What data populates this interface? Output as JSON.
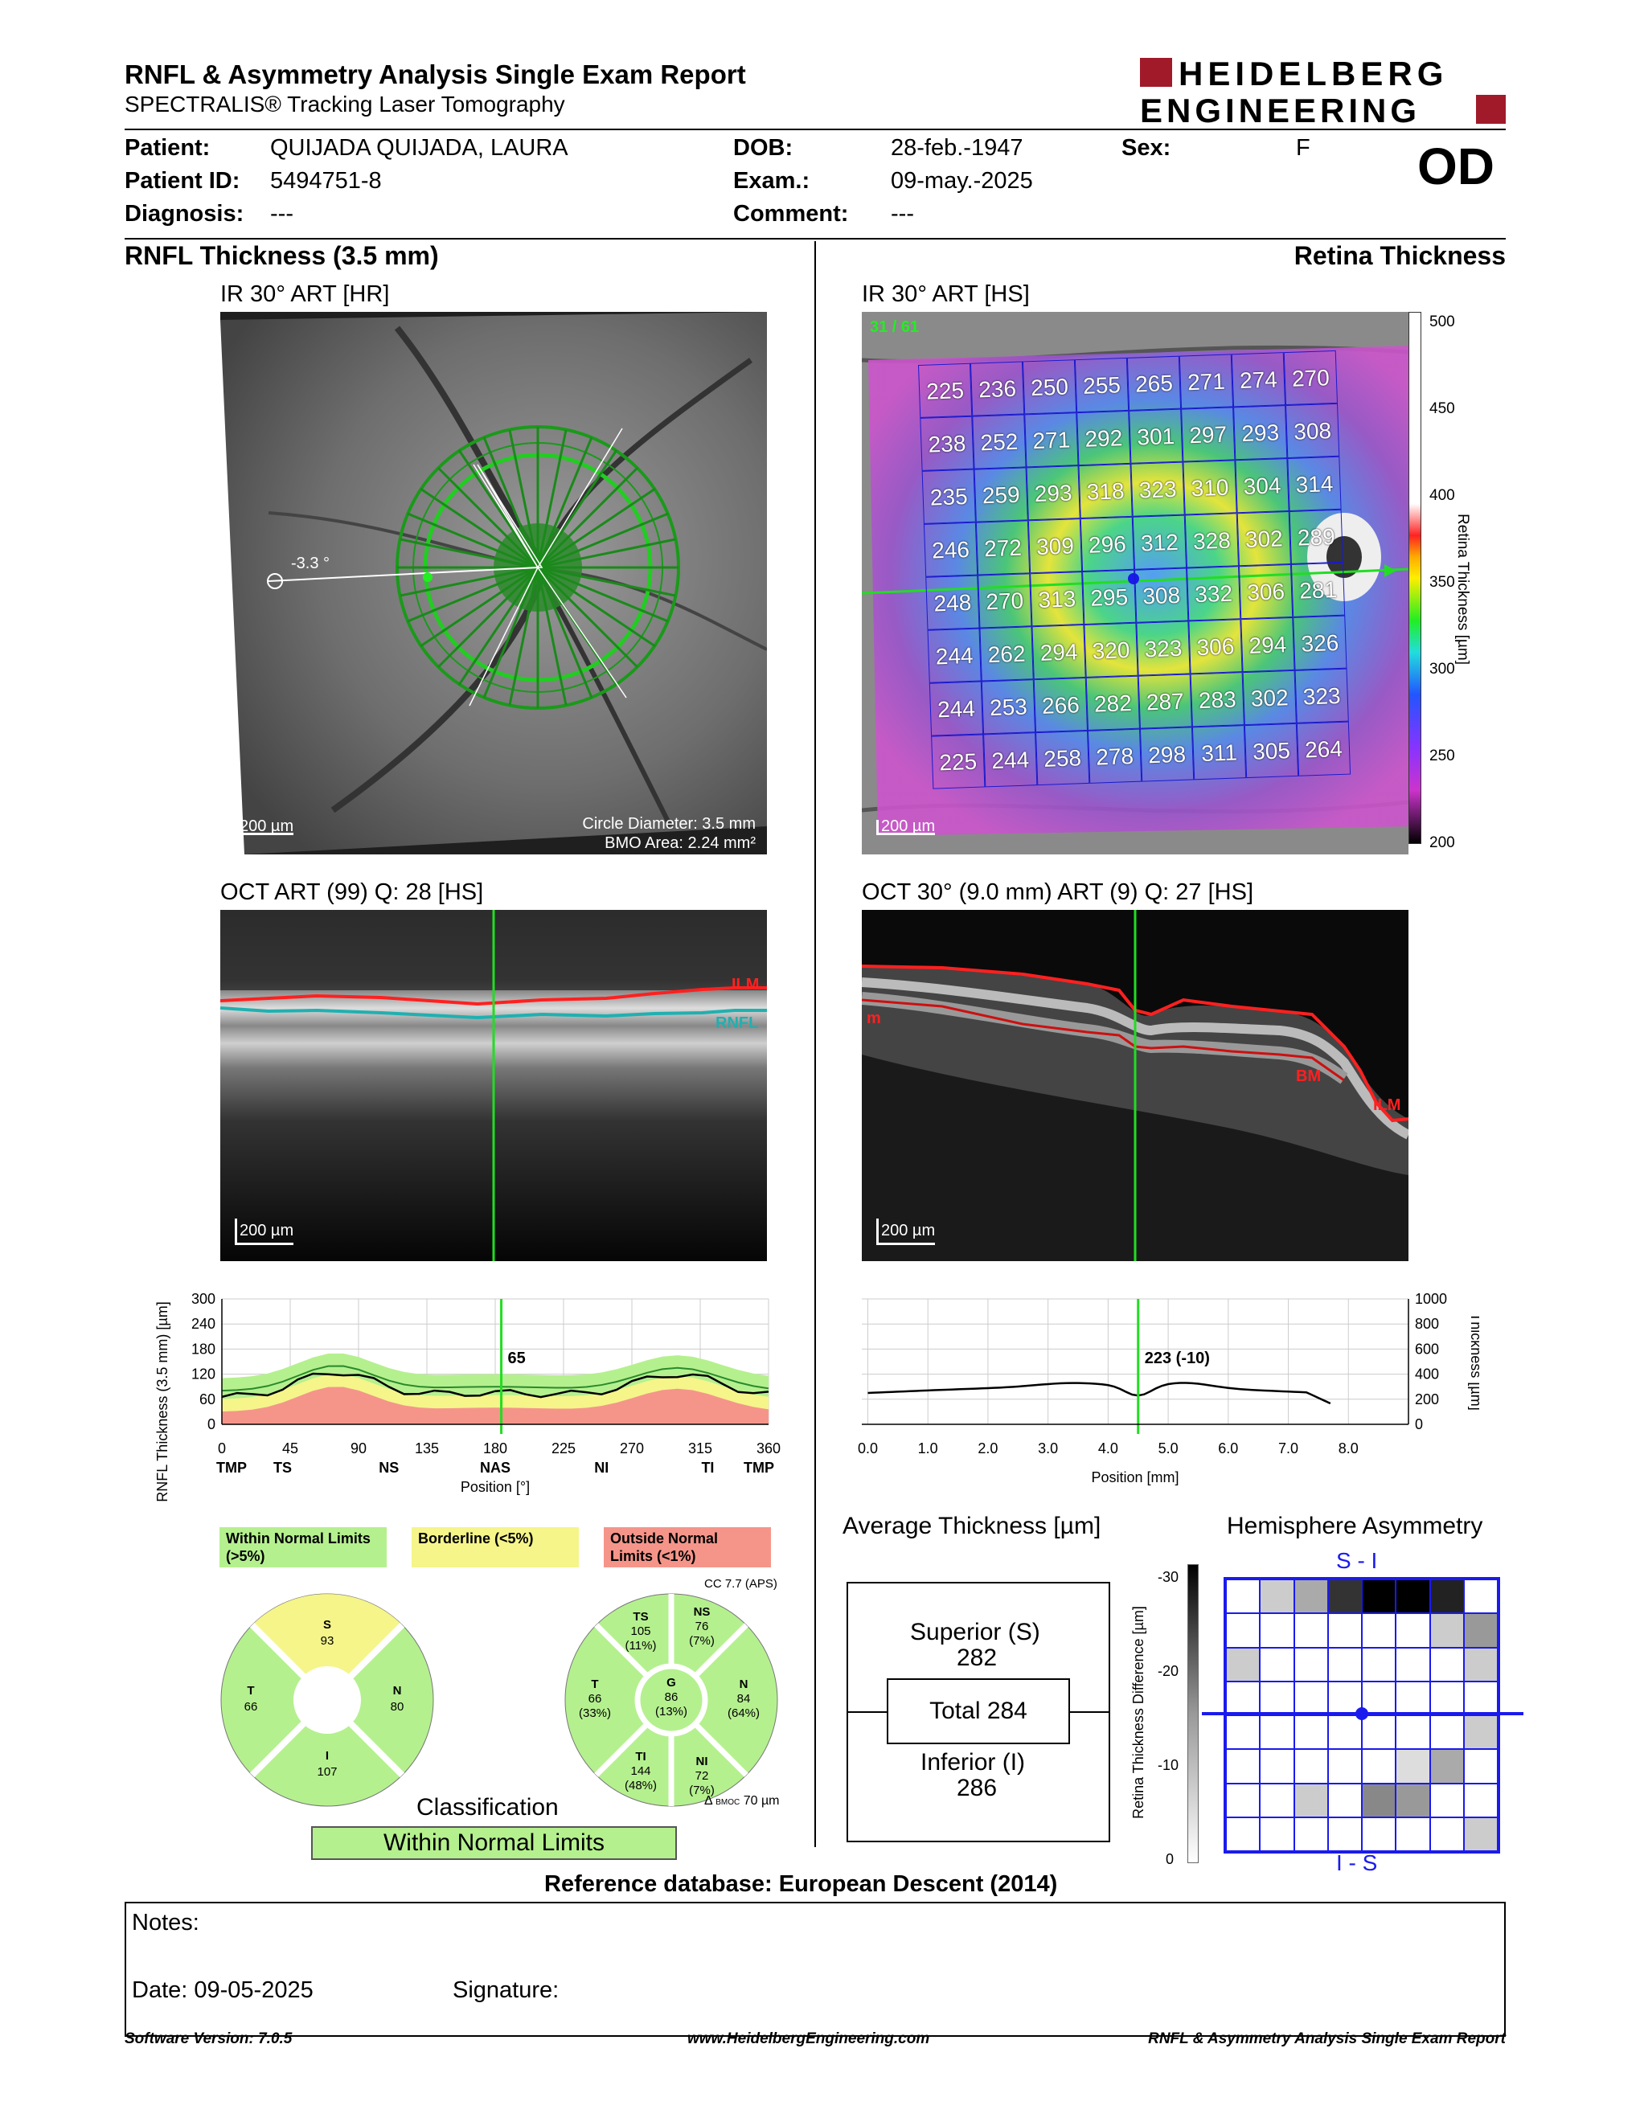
{
  "header": {
    "title": "RNFL & Asymmetry Analysis Single Exam Report",
    "subtitle": "SPECTRALIS® Tracking Laser Tomography",
    "brand_line1": "HEIDELBERG",
    "brand_line2": "ENGINEERING",
    "eye": "OD"
  },
  "patient": {
    "patient_label": "Patient:",
    "patient_value": "QUIJADA QUIJADA, LAURA",
    "id_label": "Patient ID:",
    "id_value": "5494751-8",
    "diagnosis_label": "Diagnosis:",
    "diagnosis_value": "---",
    "dob_label": "DOB:",
    "dob_value": "28-feb.-1947",
    "exam_label": "Exam.:",
    "exam_value": "09-may.-2025",
    "comment_label": "Comment:",
    "comment_value": "---",
    "sex_label": "Sex:",
    "sex_value": "F"
  },
  "left": {
    "section_title": "RNFL Thickness (3.5 mm)",
    "ir_title": "IR 30° ART [HR]",
    "ir_angle": "-3.3 °",
    "ir_scale": "200 µm",
    "ir_circle": "Circle Diameter: 3.5 mm",
    "ir_bmo": "BMO Area: 2.24 mm²",
    "oct_title": "OCT ART (99) Q: 28 [HS]",
    "oct_ilm": "ILM",
    "oct_rnfl": "RNFL",
    "oct_scale": "200 µm"
  },
  "right": {
    "section_title": "Retina Thickness",
    "ir_title": "IR 30° ART [HS]",
    "ir_counter": "31 / 61",
    "ir_scale": "200 µm",
    "colorbar_label": "Retina Thickness [µm]",
    "colorbar_ticks": [
      "500",
      "450",
      "400",
      "350",
      "300",
      "250",
      "200"
    ],
    "grid": [
      [
        225,
        236,
        250,
        255,
        265,
        271,
        274,
        270
      ],
      [
        238,
        252,
        271,
        292,
        301,
        297,
        293,
        308
      ],
      [
        235,
        259,
        293,
        318,
        323,
        310,
        304,
        314
      ],
      [
        246,
        272,
        309,
        296,
        312,
        328,
        302,
        289
      ],
      [
        248,
        270,
        313,
        295,
        308,
        332,
        306,
        281
      ],
      [
        244,
        262,
        294,
        320,
        323,
        306,
        294,
        326
      ],
      [
        244,
        253,
        266,
        282,
        287,
        283,
        302,
        323
      ],
      [
        225,
        244,
        258,
        278,
        298,
        311,
        305,
        264
      ]
    ],
    "oct_title": "OCT 30° (9.0 mm) ART (9) Q: 27 [HS]",
    "oct_ilm": "ILM",
    "oct_bm": "BM",
    "oct_m": "m",
    "oct_scale": "200 µm"
  },
  "rnfl_chart": {
    "ylabel": "RNFL Thickness (3.5 mm) [µm]",
    "xlabel": "Position [°]",
    "yticks": [
      "300",
      "240",
      "180",
      "120",
      "60",
      "0"
    ],
    "xticks": [
      "0",
      "45",
      "90",
      "135",
      "180",
      "225",
      "270",
      "315",
      "360"
    ],
    "sectors": [
      "TMP",
      "TS",
      "NS",
      "NAS",
      "NI",
      "TI",
      "TMP"
    ],
    "cursor_value": "65"
  },
  "retina_chart": {
    "xlabel": "Position [mm]",
    "ylabel": "Thickness [µm]",
    "xticks": [
      "0.0",
      "1.0",
      "2.0",
      "3.0",
      "4.0",
      "5.0",
      "6.0",
      "7.0",
      "8.0"
    ],
    "yticks": [
      "1000",
      "800",
      "600",
      "400",
      "200",
      "0"
    ],
    "cursor_value": "223 (-10)"
  },
  "legend": {
    "within": "Within Normal Limits (>5%)",
    "borderline": "Borderline (<5%)",
    "outside": "Outside Normal Limits (<1%)",
    "colors": {
      "within": "#b5f08f",
      "borderline": "#f5f58a",
      "outside": "#f5958a"
    }
  },
  "pie4": {
    "S": {
      "label": "S",
      "value": "93"
    },
    "N": {
      "label": "N",
      "value": "80"
    },
    "I": {
      "label": "I",
      "value": "107"
    },
    "T": {
      "label": "T",
      "value": "66"
    }
  },
  "pie6": {
    "cc": "CC 7.7 (APS)",
    "TS": {
      "label": "TS",
      "value": "105",
      "pct": "(11%)"
    },
    "NS": {
      "label": "NS",
      "value": "76",
      "pct": "(7%)"
    },
    "N": {
      "label": "N",
      "value": "84",
      "pct": "(64%)"
    },
    "NI": {
      "label": "NI",
      "value": "72",
      "pct": "(7%)"
    },
    "TI": {
      "label": "TI",
      "value": "144",
      "pct": "(48%)"
    },
    "T": {
      "label": "T",
      "value": "66",
      "pct": "(33%)"
    },
    "G": {
      "label": "G",
      "value": "86",
      "pct": "(13%)"
    },
    "bmo_sub": "BMOC",
    "bmo_val": "70 µm"
  },
  "classification": {
    "title": "Classification",
    "value": "Within Normal Limits"
  },
  "average": {
    "title": "Average Thickness [µm]",
    "superior_label": "Superior (S)",
    "superior_value": "282",
    "total": "Total 284",
    "inferior_label": "Inferior (I)",
    "inferior_value": "286"
  },
  "asymmetry": {
    "title": "Hemisphere Asymmetry",
    "top_label": "S - I",
    "bottom_label": "I - S",
    "scale_label": "Retina Thickness Difference [µm]",
    "scale_ticks": [
      "-30",
      "-20",
      "-10",
      "0"
    ]
  },
  "reference": "Reference database: European Descent (2014)",
  "notes": {
    "label": "Notes:",
    "date": "Date: 09-05-2025",
    "signature": "Signature:"
  },
  "footer": {
    "software": "Software Version: 7.0.5",
    "website": "www.HeidelbergEngineering.com",
    "report": "RNFL & Asymmetry Analysis Single Exam Report"
  }
}
